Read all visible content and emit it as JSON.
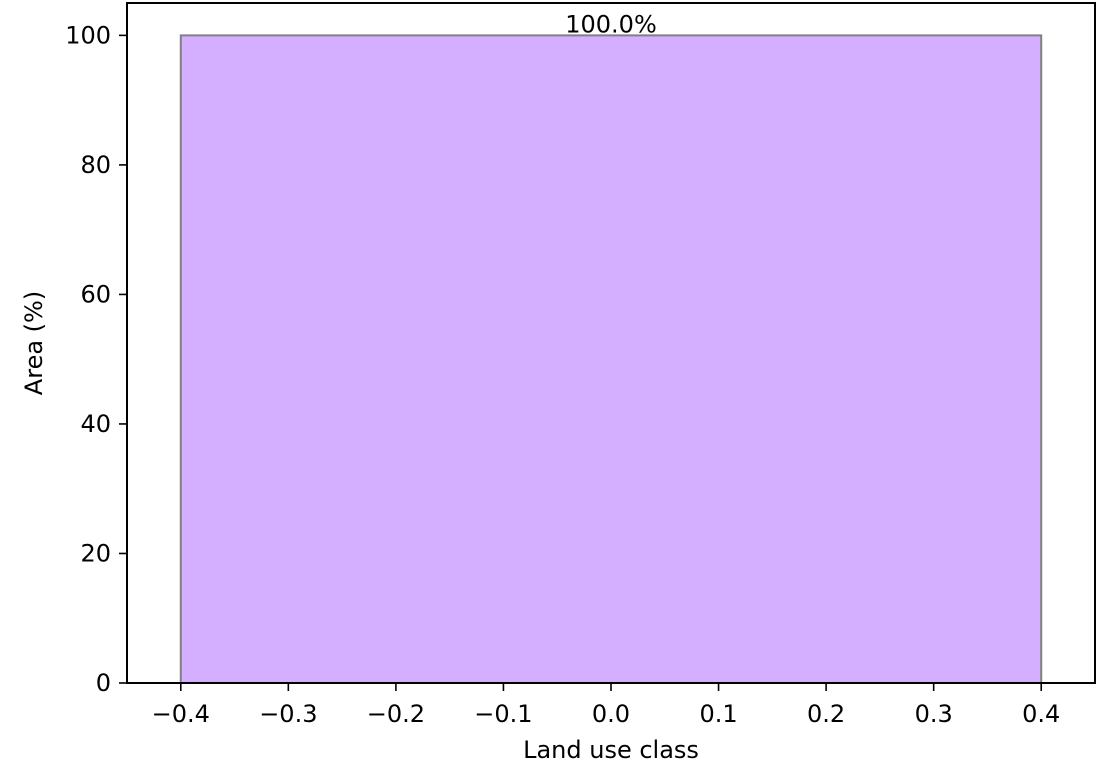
{
  "chart_data": {
    "type": "bar",
    "title": "",
    "xlabel": "Land use class",
    "ylabel": "Area (%)",
    "xlim": [
      -0.45,
      0.45
    ],
    "ylim": [
      0,
      105
    ],
    "bars": [
      {
        "x_start": -0.4,
        "x_end": 0.4,
        "value": 100.0,
        "label": "100.0%"
      }
    ],
    "x_ticks": [
      {
        "value": -0.4,
        "label": "−0.4"
      },
      {
        "value": -0.3,
        "label": "−0.3"
      },
      {
        "value": -0.2,
        "label": "−0.2"
      },
      {
        "value": -0.1,
        "label": "−0.1"
      },
      {
        "value": 0.0,
        "label": "0.0"
      },
      {
        "value": 0.1,
        "label": "0.1"
      },
      {
        "value": 0.2,
        "label": "0.2"
      },
      {
        "value": 0.3,
        "label": "0.3"
      },
      {
        "value": 0.4,
        "label": "0.4"
      }
    ],
    "y_ticks": [
      {
        "value": 0,
        "label": "0"
      },
      {
        "value": 20,
        "label": "20"
      },
      {
        "value": 40,
        "label": "40"
      },
      {
        "value": 60,
        "label": "60"
      },
      {
        "value": 80,
        "label": "80"
      },
      {
        "value": 100,
        "label": "100"
      }
    ],
    "grid": false,
    "legend": "none",
    "colors": {
      "bar_fill": "#d4aeff",
      "bar_edge": "#808080",
      "axes": "#000000"
    }
  }
}
